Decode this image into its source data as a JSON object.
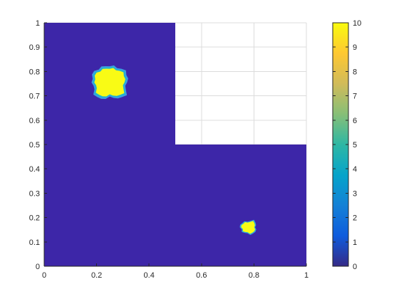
{
  "chart_data": {
    "type": "heatmap",
    "title": "",
    "xlabel": "",
    "ylabel": "",
    "xlim": [
      0,
      1
    ],
    "ylim": [
      0,
      1
    ],
    "x_ticks": [
      "0",
      "0.2",
      "0.4",
      "0.6",
      "0.8",
      "1"
    ],
    "y_ticks": [
      "0",
      "0.1",
      "0.2",
      "0.3",
      "0.4",
      "0.5",
      "0.6",
      "0.7",
      "0.8",
      "0.9",
      "1"
    ],
    "grid": true,
    "domain": "L-shaped region: [0,1]x[0,0.5] union [0,0.5]x[0.5,1]; region x>0.5, y>0.5 is empty",
    "background_value": 0,
    "blobs": [
      {
        "label": "upper-left peak",
        "center": [
          0.25,
          0.755
        ],
        "half_width": [
          0.055,
          0.055
        ],
        "value": 10
      },
      {
        "label": "lower-right peak",
        "center": [
          0.78,
          0.16
        ],
        "half_width": [
          0.025,
          0.022
        ],
        "value": 10
      }
    ],
    "colorbar": {
      "range": [
        0,
        10
      ],
      "ticks": [
        "0",
        "1",
        "2",
        "3",
        "4",
        "5",
        "6",
        "7",
        "8",
        "9",
        "10"
      ],
      "colormap": "parula",
      "stops": [
        "#352a87",
        "#0f5cdd",
        "#1481d6",
        "#06a4ca",
        "#2eb7a4",
        "#87bf77",
        "#d1bb59",
        "#fec832",
        "#f9fb0e"
      ]
    },
    "colors": {
      "low": "#3d26a8",
      "high": "#f9fb15",
      "edge_light_blue": "#3c9fe0",
      "edge_cyan": "#1fb3d1"
    }
  }
}
